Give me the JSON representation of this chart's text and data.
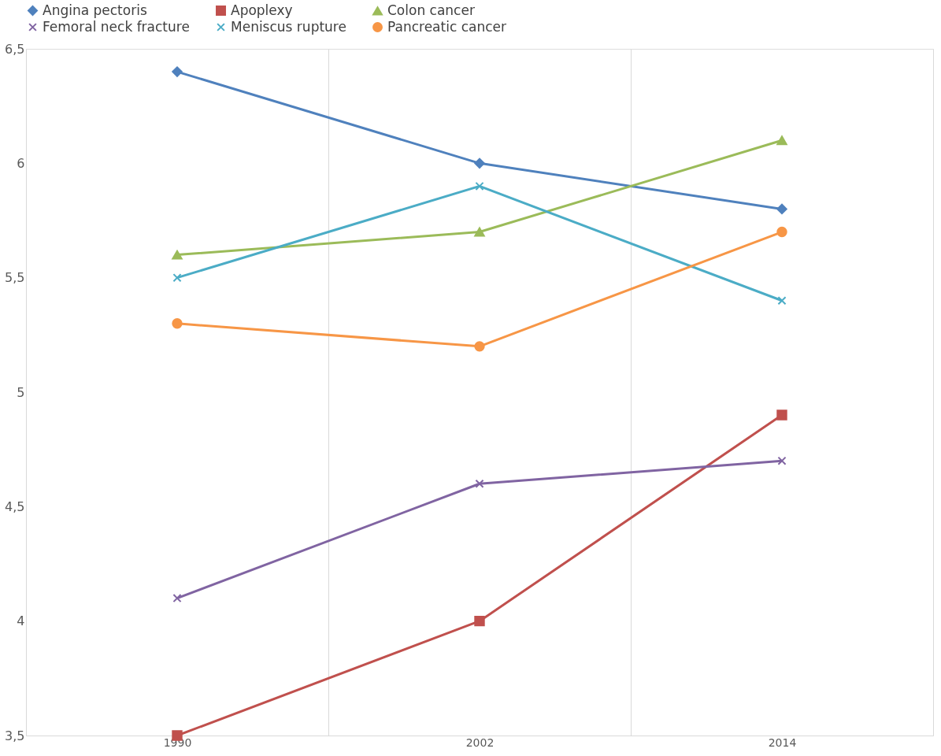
{
  "chart_data": {
    "type": "line",
    "categories": [
      "1990",
      "2002",
      "2014"
    ],
    "series": [
      {
        "name": "Angina pectoris",
        "color": "#4f81bd",
        "marker": "diamond",
        "values": [
          6.4,
          6.0,
          5.8
        ]
      },
      {
        "name": "Apoplexy",
        "color": "#c0504d",
        "marker": "square",
        "values": [
          3.5,
          4.0,
          4.9
        ]
      },
      {
        "name": "Colon cancer",
        "color": "#9bbb59",
        "marker": "triangle",
        "values": [
          5.6,
          5.7,
          6.1
        ]
      },
      {
        "name": "Femoral neck fracture",
        "color": "#8064a2",
        "marker": "cross",
        "values": [
          4.1,
          4.6,
          4.7
        ]
      },
      {
        "name": "Meniscus rupture",
        "color": "#4bacc6",
        "marker": "cross",
        "values": [
          5.5,
          5.9,
          5.4
        ]
      },
      {
        "name": "Pancreatic cancer",
        "color": "#f79646",
        "marker": "circle",
        "values": [
          5.3,
          5.2,
          5.7
        ]
      }
    ],
    "ylim": [
      3.5,
      6.5
    ],
    "yticks": [
      {
        "value": 3.5,
        "label": "3,5"
      },
      4,
      {
        "value": 4.5,
        "label": "4,5"
      },
      5,
      {
        "value": 5.5,
        "label": "5,5"
      },
      6,
      {
        "value": 6.5,
        "label": "6,5"
      }
    ],
    "grid": "x",
    "legend": "top",
    "line_style": "solid"
  }
}
